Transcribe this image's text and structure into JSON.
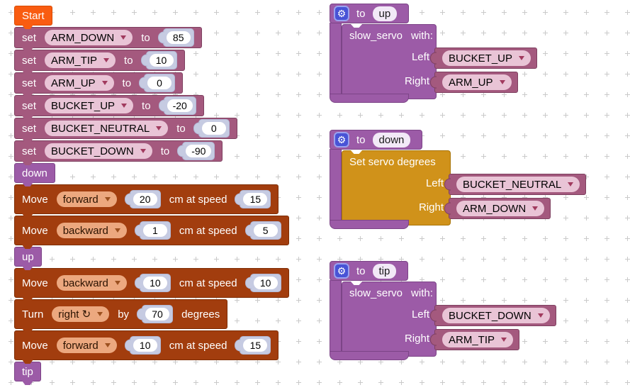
{
  "colors": {
    "workspace_bg": "#ffffff",
    "grid": "#c9c9c9",
    "start": "#f95c11",
    "start_border": "#d94a00",
    "mauve": "#a4597e",
    "mauve_border": "#7e4060",
    "pink_pill": "#e9c4d6",
    "pill_arrow": "#a13a5e",
    "shadow": "#c6cbe2",
    "shadow_border": "#b2b8d6",
    "field": "#ffffff",
    "rust": "#a23d0e",
    "rust_border": "#7e2d05",
    "salmon_pill": "#eca87f",
    "rust_arrow": "#9c501f",
    "purple": "#9c5ba7",
    "purple_border": "#7c4487",
    "name_pill": "#f2e9f7",
    "gold": "#d0921a",
    "gold_border": "#a87408",
    "gear_bg": "#4853d6",
    "gear_border": "#9aa2ef"
  },
  "icons": {
    "gear": "⚙"
  },
  "stack": {
    "start": "Start",
    "sets": [
      {
        "kw": "set",
        "var": "ARM_DOWN",
        "to": "to",
        "val": "85"
      },
      {
        "kw": "set",
        "var": "ARM_TIP",
        "to": "to",
        "val": "10"
      },
      {
        "kw": "set",
        "var": "ARM_UP",
        "to": "to",
        "val": "0"
      },
      {
        "kw": "set",
        "var": "BUCKET_UP",
        "to": "to",
        "val": "-20"
      },
      {
        "kw": "set",
        "var": "BUCKET_NEUTRAL",
        "to": "to",
        "val": "0"
      },
      {
        "kw": "set",
        "var": "BUCKET_DOWN",
        "to": "to",
        "val": "-90"
      }
    ],
    "down": "down",
    "up": "up",
    "tip": "tip",
    "moves": [
      {
        "kw": "Move",
        "dir": "forward",
        "dist": "20",
        "mid": "cm at speed",
        "speed": "15"
      },
      {
        "kw": "Move",
        "dir": "backward",
        "dist": "1",
        "mid": "cm at speed",
        "speed": "5"
      },
      {
        "kw": "Move",
        "dir": "backward",
        "dist": "10",
        "mid": "cm at speed",
        "speed": "10"
      },
      {
        "kw": "Move",
        "dir": "forward",
        "dist": "10",
        "mid": "cm at speed",
        "speed": "15"
      }
    ],
    "turn": {
      "kw": "Turn",
      "dir": "right ↻",
      "by": "by",
      "angle": "70",
      "suffix": "degrees"
    }
  },
  "functions": [
    {
      "to": "to",
      "name": "up",
      "title": "slow_servo",
      "with": "with:",
      "left_label": "Left",
      "left_value": "BUCKET_UP",
      "right_label": "Right",
      "right_value": "ARM_UP"
    },
    {
      "to": "to",
      "name": "down",
      "title": "Set servo degrees",
      "with": "",
      "left_label": "Left",
      "left_value": "BUCKET_NEUTRAL",
      "right_label": "Right",
      "right_value": "ARM_DOWN"
    },
    {
      "to": "to",
      "name": "tip",
      "title": "slow_servo",
      "with": "with:",
      "left_label": "Left",
      "left_value": "BUCKET_DOWN",
      "right_label": "Right",
      "right_value": "ARM_TIP"
    }
  ]
}
